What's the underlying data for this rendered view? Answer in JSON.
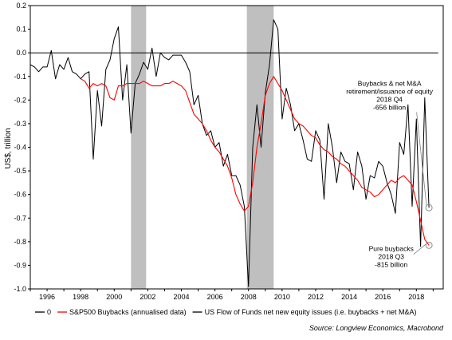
{
  "chart_data": {
    "type": "line",
    "title": "",
    "xlabel": "",
    "ylabel": "US$, trillion",
    "xlim": [
      1995,
      2019.6
    ],
    "ylim": [
      -1.0,
      0.2
    ],
    "x_ticks": [
      "1996",
      "1998",
      "2000",
      "2002",
      "2004",
      "2006",
      "2008",
      "2010",
      "2012",
      "2014",
      "2016",
      "2018"
    ],
    "y_ticks": [
      "0.2",
      "0.1",
      "0.0",
      "-0.1",
      "-0.2",
      "-0.3",
      "-0.4",
      "-0.5",
      "-0.6",
      "-0.7",
      "-0.8",
      "-0.9",
      "-1.0"
    ],
    "grid": false,
    "recessions": [
      [
        2001.0,
        2001.9
      ],
      [
        2007.9,
        2009.5
      ]
    ],
    "legend_position": "bottom",
    "series": [
      {
        "name": "0",
        "color": "#000000",
        "points": [
          [
            1995,
            0.0
          ],
          [
            2019.3,
            0.0
          ]
        ]
      },
      {
        "name": "S&P500 Buybacks (annualised data)",
        "color": "#ff0000",
        "points": [
          [
            1998.0,
            -0.11
          ],
          [
            1998.25,
            -0.12
          ],
          [
            1998.5,
            -0.15
          ],
          [
            1998.75,
            -0.13
          ],
          [
            1999.0,
            -0.14
          ],
          [
            1999.25,
            -0.13
          ],
          [
            1999.5,
            -0.14
          ],
          [
            1999.75,
            -0.19
          ],
          [
            2000.0,
            -0.2
          ],
          [
            2000.25,
            -0.14
          ],
          [
            2000.5,
            -0.14
          ],
          [
            2000.75,
            -0.13
          ],
          [
            2001.0,
            -0.13
          ],
          [
            2001.25,
            -0.13
          ],
          [
            2001.5,
            -0.13
          ],
          [
            2001.75,
            -0.12
          ],
          [
            2002.0,
            -0.13
          ],
          [
            2002.25,
            -0.14
          ],
          [
            2002.5,
            -0.14
          ],
          [
            2002.75,
            -0.14
          ],
          [
            2003.0,
            -0.13
          ],
          [
            2003.25,
            -0.13
          ],
          [
            2003.5,
            -0.12
          ],
          [
            2003.75,
            -0.13
          ],
          [
            2004.0,
            -0.14
          ],
          [
            2004.25,
            -0.16
          ],
          [
            2004.5,
            -0.21
          ],
          [
            2004.75,
            -0.26
          ],
          [
            2005.0,
            -0.28
          ],
          [
            2005.25,
            -0.3
          ],
          [
            2005.5,
            -0.33
          ],
          [
            2005.75,
            -0.37
          ],
          [
            2006.0,
            -0.4
          ],
          [
            2006.25,
            -0.42
          ],
          [
            2006.5,
            -0.45
          ],
          [
            2006.75,
            -0.48
          ],
          [
            2007.0,
            -0.53
          ],
          [
            2007.25,
            -0.6
          ],
          [
            2007.5,
            -0.64
          ],
          [
            2007.75,
            -0.67
          ],
          [
            2008.0,
            -0.65
          ],
          [
            2008.25,
            -0.55
          ],
          [
            2008.5,
            -0.4
          ],
          [
            2008.75,
            -0.3
          ],
          [
            2009.0,
            -0.18
          ],
          [
            2009.25,
            -0.13
          ],
          [
            2009.5,
            -0.1
          ],
          [
            2009.75,
            -0.13
          ],
          [
            2010.0,
            -0.16
          ],
          [
            2010.25,
            -0.2
          ],
          [
            2010.5,
            -0.24
          ],
          [
            2010.75,
            -0.28
          ],
          [
            2011.0,
            -0.3
          ],
          [
            2011.25,
            -0.31
          ],
          [
            2011.5,
            -0.33
          ],
          [
            2011.75,
            -0.35
          ],
          [
            2012.0,
            -0.36
          ],
          [
            2012.25,
            -0.39
          ],
          [
            2012.5,
            -0.41
          ],
          [
            2012.75,
            -0.42
          ],
          [
            2013.0,
            -0.44
          ],
          [
            2013.25,
            -0.45
          ],
          [
            2013.5,
            -0.47
          ],
          [
            2013.75,
            -0.48
          ],
          [
            2014.0,
            -0.5
          ],
          [
            2014.25,
            -0.52
          ],
          [
            2014.5,
            -0.54
          ],
          [
            2014.75,
            -0.57
          ],
          [
            2015.0,
            -0.58
          ],
          [
            2015.25,
            -0.59
          ],
          [
            2015.5,
            -0.61
          ],
          [
            2015.75,
            -0.6
          ],
          [
            2016.0,
            -0.58
          ],
          [
            2016.25,
            -0.56
          ],
          [
            2016.5,
            -0.54
          ],
          [
            2016.75,
            -0.55
          ],
          [
            2017.0,
            -0.53
          ],
          [
            2017.25,
            -0.52
          ],
          [
            2017.5,
            -0.54
          ],
          [
            2017.75,
            -0.56
          ],
          [
            2018.0,
            -0.63
          ],
          [
            2018.25,
            -0.71
          ],
          [
            2018.5,
            -0.79
          ],
          [
            2018.75,
            -0.815
          ]
        ]
      },
      {
        "name": "US Flow of Funds net new equity issues (i.e. buybacks + net M&A)",
        "color": "#000000",
        "points": [
          [
            1995.0,
            -0.05
          ],
          [
            1995.25,
            -0.06
          ],
          [
            1995.5,
            -0.08
          ],
          [
            1995.75,
            -0.06
          ],
          [
            1996.0,
            -0.06
          ],
          [
            1996.25,
            0.01
          ],
          [
            1996.5,
            -0.11
          ],
          [
            1996.75,
            -0.05
          ],
          [
            1997.0,
            -0.07
          ],
          [
            1997.25,
            -0.02
          ],
          [
            1997.5,
            -0.08
          ],
          [
            1997.75,
            -0.09
          ],
          [
            1998.0,
            -0.11
          ],
          [
            1998.25,
            -0.09
          ],
          [
            1998.5,
            -0.08
          ],
          [
            1998.75,
            -0.45
          ],
          [
            1999.0,
            -0.16
          ],
          [
            1999.25,
            -0.31
          ],
          [
            1999.5,
            -0.07
          ],
          [
            1999.75,
            -0.03
          ],
          [
            2000.0,
            0.06
          ],
          [
            2000.25,
            0.11
          ],
          [
            2000.5,
            -0.2
          ],
          [
            2000.75,
            -0.05
          ],
          [
            2001.0,
            -0.34
          ],
          [
            2001.25,
            -0.13
          ],
          [
            2001.5,
            -0.09
          ],
          [
            2001.75,
            -0.04
          ],
          [
            2002.0,
            -0.07
          ],
          [
            2002.25,
            0.02
          ],
          [
            2002.5,
            -0.1
          ],
          [
            2002.75,
            0.0
          ],
          [
            2003.0,
            -0.02
          ],
          [
            2003.25,
            -0.03
          ],
          [
            2003.5,
            -0.01
          ],
          [
            2003.75,
            -0.01
          ],
          [
            2004.0,
            -0.01
          ],
          [
            2004.25,
            -0.04
          ],
          [
            2004.5,
            -0.08
          ],
          [
            2004.75,
            -0.22
          ],
          [
            2005.0,
            -0.18
          ],
          [
            2005.25,
            -0.3
          ],
          [
            2005.5,
            -0.35
          ],
          [
            2005.75,
            -0.33
          ],
          [
            2006.0,
            -0.4
          ],
          [
            2006.25,
            -0.38
          ],
          [
            2006.5,
            -0.48
          ],
          [
            2006.75,
            -0.43
          ],
          [
            2007.0,
            -0.52
          ],
          [
            2007.25,
            -0.52
          ],
          [
            2007.5,
            -0.56
          ],
          [
            2007.75,
            -0.65
          ],
          [
            2008.0,
            -0.99
          ],
          [
            2008.25,
            -0.4
          ],
          [
            2008.5,
            -0.22
          ],
          [
            2008.75,
            -0.4
          ],
          [
            2009.0,
            -0.17
          ],
          [
            2009.25,
            -0.05
          ],
          [
            2009.5,
            0.14
          ],
          [
            2009.75,
            0.1
          ],
          [
            2010.0,
            -0.28
          ],
          [
            2010.25,
            -0.15
          ],
          [
            2010.5,
            -0.22
          ],
          [
            2010.75,
            -0.33
          ],
          [
            2011.0,
            -0.3
          ],
          [
            2011.25,
            -0.37
          ],
          [
            2011.5,
            -0.45
          ],
          [
            2011.75,
            -0.46
          ],
          [
            2012.0,
            -0.33
          ],
          [
            2012.25,
            -0.37
          ],
          [
            2012.5,
            -0.62
          ],
          [
            2012.75,
            -0.3
          ],
          [
            2013.0,
            -0.4
          ],
          [
            2013.25,
            -0.55
          ],
          [
            2013.5,
            -0.42
          ],
          [
            2013.75,
            -0.46
          ],
          [
            2014.0,
            -0.47
          ],
          [
            2014.25,
            -0.58
          ],
          [
            2014.5,
            -0.42
          ],
          [
            2014.75,
            -0.48
          ],
          [
            2015.0,
            -0.62
          ],
          [
            2015.25,
            -0.52
          ],
          [
            2015.5,
            -0.53
          ],
          [
            2015.75,
            -0.46
          ],
          [
            2016.0,
            -0.48
          ],
          [
            2016.25,
            -0.55
          ],
          [
            2016.5,
            -0.6
          ],
          [
            2016.75,
            -0.68
          ],
          [
            2017.0,
            -0.38
          ],
          [
            2017.25,
            -0.43
          ],
          [
            2017.5,
            -0.22
          ],
          [
            2017.75,
            -0.65
          ],
          [
            2018.0,
            -0.28
          ],
          [
            2018.25,
            -0.82
          ],
          [
            2018.5,
            -0.19
          ],
          [
            2018.75,
            -0.656
          ]
        ]
      }
    ],
    "annotations": [
      {
        "lines": [
          "Buybacks & net M&A",
          "retirement/issuance of equity",
          "2018 Q4",
          "-656 billion"
        ],
        "x": 2018.75,
        "y": -0.656,
        "text_anchor_x": 2016.4,
        "text_anchor_y": -0.14
      },
      {
        "lines": [
          "Pure buybacks",
          "2018 Q3",
          "-815 billion"
        ],
        "x": 2018.75,
        "y": -0.815,
        "text_anchor_x": 2016.5,
        "text_anchor_y": -0.84
      }
    ],
    "source": "Source: Longview Economics, Macrobond"
  }
}
